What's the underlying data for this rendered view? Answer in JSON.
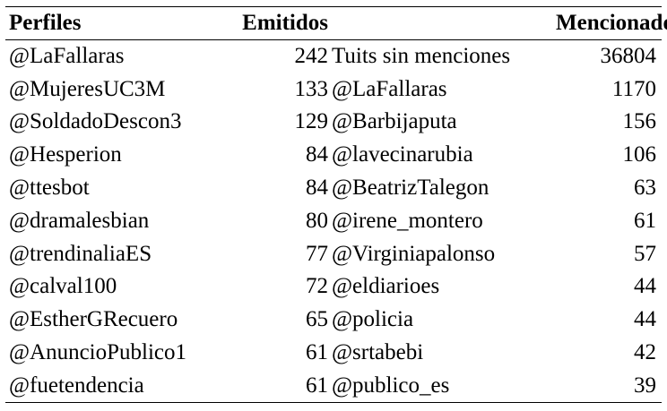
{
  "headers": {
    "perfiles": "Perfiles",
    "emitidos": "Emitidos",
    "mencionados": "Mencionados"
  },
  "rows": [
    {
      "perfil": "@LaFallaras",
      "emitidos": "242",
      "mencionado": "Tuits sin menciones",
      "count": "36804"
    },
    {
      "perfil": "@MujeresUC3M",
      "emitidos": "133",
      "mencionado": "@LaFallaras",
      "count": "1170"
    },
    {
      "perfil": "@SoldadoDescon3",
      "emitidos": "129",
      "mencionado": "@Barbijaputa",
      "count": "156"
    },
    {
      "perfil": "@Hesperion",
      "emitidos": "84",
      "mencionado": "@lavecinarubia",
      "count": "106"
    },
    {
      "perfil": "@ttesbot",
      "emitidos": "84",
      "mencionado": "@BeatrizTalegon",
      "count": "63"
    },
    {
      "perfil": "@dramalesbian",
      "emitidos": "80",
      "mencionado": "@irene_montero",
      "count": "61"
    },
    {
      "perfil": "@trendinaliaES",
      "emitidos": "77",
      "mencionado": "@Virginiapalonso",
      "count": "57"
    },
    {
      "perfil": "@calval100",
      "emitidos": "72",
      "mencionado": "@eldiarioes",
      "count": "44"
    },
    {
      "perfil": "@EstherGRecuero",
      "emitidos": "65",
      "mencionado": "@policia",
      "count": "44"
    },
    {
      "perfil": "@AnuncioPublico1",
      "emitidos": "61",
      "mencionado": "@srtabebi",
      "count": "42"
    },
    {
      "perfil": "@fuetendencia",
      "emitidos": "61",
      "mencionado": "@publico_es",
      "count": "39"
    }
  ]
}
